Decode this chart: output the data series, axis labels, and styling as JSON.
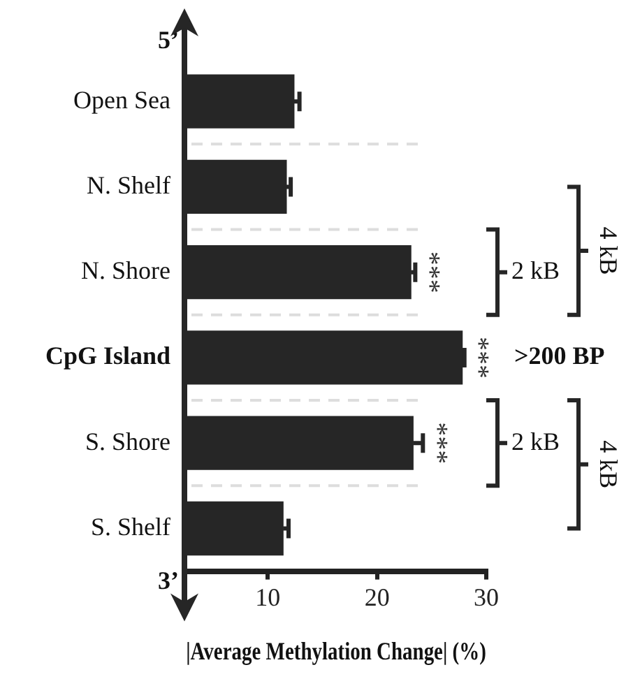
{
  "chart_data": {
    "type": "bar",
    "orientation": "horizontal",
    "categories": [
      "Open Sea",
      "N. Shelf",
      "N. Shore",
      "CpG Island",
      "S. Shore",
      "S. Shelf"
    ],
    "values": [
      12.4,
      11.7,
      23.1,
      27.8,
      23.3,
      11.4
    ],
    "errors": [
      [
        12.4,
        12.9
      ],
      [
        11.7,
        12.1
      ],
      [
        23.1,
        23.5
      ],
      [
        27.8,
        28.0
      ],
      [
        23.3,
        24.2
      ],
      [
        11.4,
        11.9
      ]
    ],
    "color": "#262626",
    "xlim": [
      2.5,
      30
    ],
    "xticks": [
      10,
      20,
      30
    ],
    "xlabel": "|Average Methylation Change| (%)",
    "grid": false,
    "legend": false,
    "annotations": [
      ">200 BP",
      "2 kB",
      "4 kB",
      "2 kB",
      "4 kB",
      {
        "text": "***",
        "x": 24.2,
        "y": "N. Shore"
      },
      {
        "text": "***",
        "x": 28.7,
        "y": "CpG Island"
      },
      {
        "text": "***",
        "x": 24.9,
        "y": "S. Shore"
      },
      "5’",
      "3’"
    ]
  }
}
